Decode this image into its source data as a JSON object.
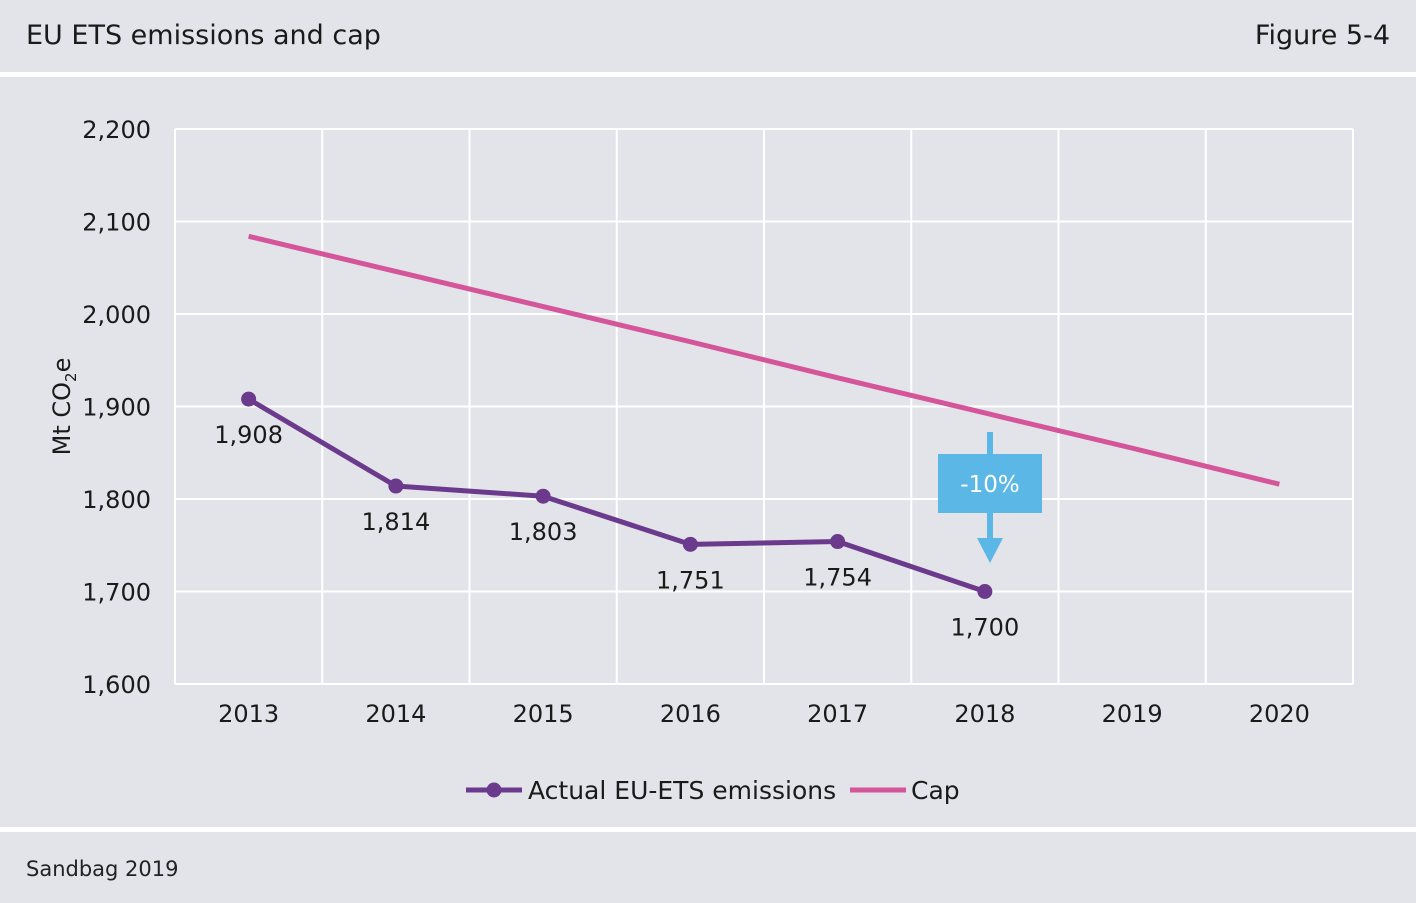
{
  "header": {
    "title": "EU ETS emissions and cap",
    "figure_label": "Figure 5-4"
  },
  "footer": {
    "source": "Sandbag 2019"
  },
  "annotation": {
    "label": "-10%",
    "color": "#5bb8e6"
  },
  "colors": {
    "emissions": "#6b3a8c",
    "cap": "#d4559a",
    "grid": "#ffffff"
  },
  "chart_data": {
    "type": "line",
    "categories": [
      "2013",
      "2014",
      "2015",
      "2016",
      "2017",
      "2018",
      "2019",
      "2020"
    ],
    "ylabel_main": "Mt CO",
    "ylabel_sub": "2",
    "ylabel_tail": "e",
    "ylim": [
      1600,
      2200
    ],
    "yticks": [
      {
        "value": 1600,
        "label": "1,600"
      },
      {
        "value": 1700,
        "label": "1,700"
      },
      {
        "value": 1800,
        "label": "1,800"
      },
      {
        "value": 1900,
        "label": "1,900"
      },
      {
        "value": 2000,
        "label": "2,000"
      },
      {
        "value": 2100,
        "label": "2,100"
      },
      {
        "value": 2200,
        "label": "2,200"
      }
    ],
    "grid": true,
    "legend_position": "bottom",
    "series": [
      {
        "key": "emissions",
        "name": "Actual EU-ETS emissions",
        "values": [
          1908,
          1814,
          1803,
          1751,
          1754,
          1700,
          null,
          null
        ],
        "labels": [
          "1,908",
          "1,814",
          "1,803",
          "1,751",
          "1,754",
          "1,700",
          null,
          null
        ],
        "markers": true
      },
      {
        "key": "cap",
        "name": "Cap",
        "values": [
          2084,
          2046,
          2008,
          1970,
          1931,
          1893,
          1855,
          1816
        ],
        "markers": false
      }
    ]
  }
}
